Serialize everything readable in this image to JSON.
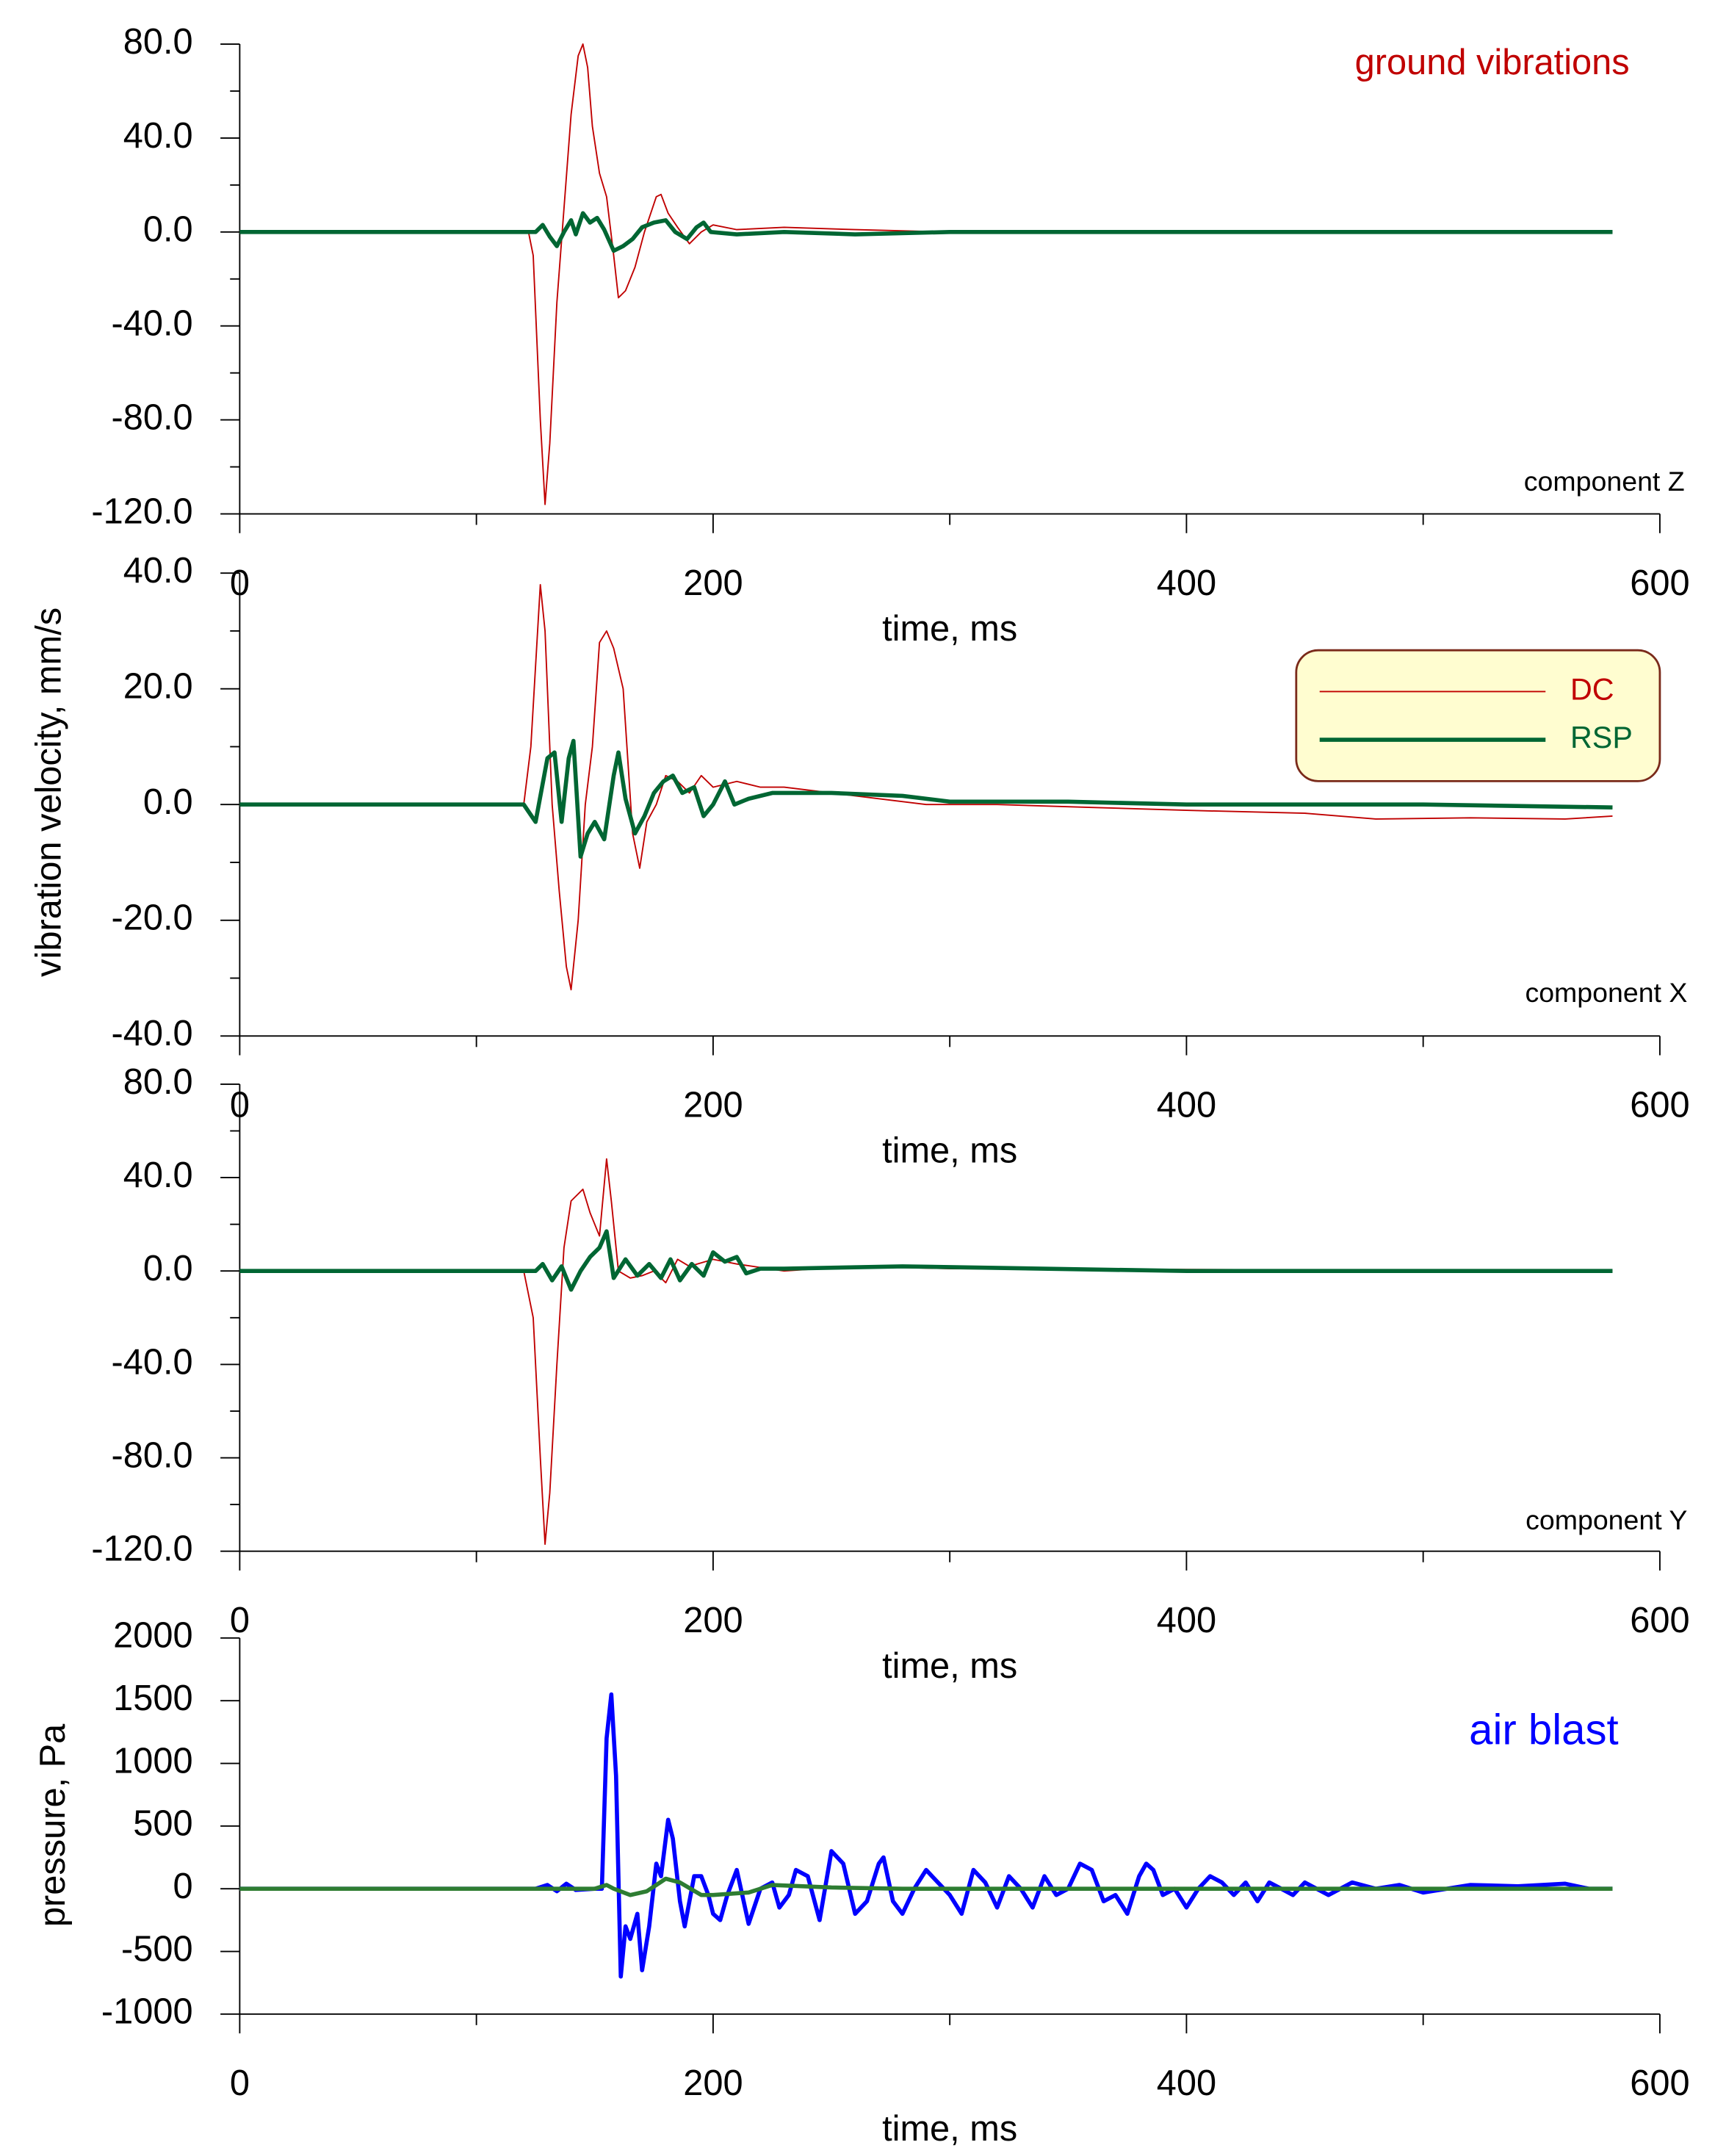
{
  "chart_data": [
    {
      "type": "line",
      "annotation": "ground vibrations",
      "annotation_color": "#c00000",
      "component": "component Z",
      "xlabel": "time, ms",
      "xlim": [
        0,
        600
      ],
      "xticks": [
        0,
        200,
        400,
        600
      ],
      "xminorticks": [
        100,
        300,
        500
      ],
      "ylim": [
        -120,
        80
      ],
      "yticks": [
        {
          "value": -120,
          "label": "-120.0"
        },
        {
          "value": -80,
          "label": "-80.0"
        },
        {
          "value": -40,
          "label": "-40.0"
        },
        {
          "value": 0,
          "label": "0.0"
        },
        {
          "value": 40,
          "label": "40.0"
        },
        {
          "value": 80,
          "label": "80.0"
        }
      ],
      "yminorticks": [
        -100,
        -60,
        -20,
        20,
        60
      ],
      "series": [
        {
          "color": "#c00000",
          "width": 1,
          "x": [
            0,
            122,
            124,
            127,
            129,
            131,
            134,
            137,
            140,
            143,
            145,
            147,
            149,
            152,
            155,
            158,
            160,
            163,
            167,
            171,
            176,
            178,
            181,
            185,
            190,
            195,
            200,
            210,
            230,
            260,
            300,
            580
          ],
          "values": [
            0,
            0,
            -10,
            -80,
            -116,
            -90,
            -30,
            10,
            50,
            75,
            80,
            70,
            45,
            25,
            15,
            -10,
            -28,
            -25,
            -15,
            0,
            15,
            16,
            8,
            2,
            -5,
            0,
            3,
            1,
            2,
            1,
            0,
            0
          ]
        },
        {
          "color": "#006633",
          "width": 3,
          "x": [
            0,
            125,
            128,
            131,
            134,
            137,
            140,
            142,
            145,
            148,
            151,
            154,
            158,
            162,
            166,
            170,
            175,
            180,
            184,
            189,
            193,
            196,
            199,
            210,
            230,
            260,
            300,
            580
          ],
          "values": [
            0,
            0,
            3,
            -2,
            -6,
            0,
            5,
            -1,
            8,
            4,
            6,
            1,
            -8,
            -6,
            -3,
            2,
            4,
            5,
            0,
            -3,
            2,
            4,
            0,
            -1,
            0,
            -1,
            0,
            0
          ]
        }
      ]
    },
    {
      "type": "line",
      "component": "component X",
      "xlabel": "time, ms",
      "ylabel": "vibration velocity, mm/s",
      "legend": "upper right",
      "xlim": [
        0,
        600
      ],
      "xticks": [
        0,
        200,
        400,
        600
      ],
      "xminorticks": [
        100,
        300,
        500
      ],
      "ylim": [
        -40,
        40
      ],
      "yticks": [
        {
          "value": -40,
          "label": "-40.0"
        },
        {
          "value": -20,
          "label": "-20.0"
        },
        {
          "value": 0,
          "label": "0.0"
        },
        {
          "value": 20,
          "label": "20.0"
        },
        {
          "value": 40,
          "label": "40.0"
        }
      ],
      "yminorticks": [
        -30,
        -10,
        10,
        30
      ],
      "series": [
        {
          "name": "DC",
          "color": "#c00000",
          "width": 1,
          "x": [
            0,
            120,
            123,
            127,
            129,
            132,
            135,
            138,
            140,
            143,
            146,
            149,
            152,
            155,
            158,
            162,
            166,
            169,
            172,
            176,
            180,
            185,
            190,
            195,
            200,
            210,
            220,
            230,
            250,
            270,
            290,
            320,
            360,
            400,
            450,
            480,
            520,
            560,
            580
          ],
          "values": [
            0,
            0,
            10,
            38,
            30,
            0,
            -15,
            -28,
            -32,
            -20,
            0,
            10,
            28,
            30,
            27,
            20,
            -5,
            -11,
            -3,
            0,
            5,
            4,
            2,
            5,
            3,
            4,
            3,
            3,
            2,
            1,
            0,
            0,
            -0.5,
            -1,
            -1.5,
            -2.5,
            -2.3,
            -2.5,
            -2
          ]
        },
        {
          "name": "RSP",
          "color": "#006633",
          "width": 3,
          "x": [
            0,
            120,
            125,
            130,
            133,
            136,
            139,
            141,
            144,
            147,
            150,
            154,
            158,
            160,
            163,
            167,
            171,
            175,
            179,
            183,
            187,
            192,
            196,
            200,
            205,
            209,
            215,
            225,
            250,
            280,
            300,
            350,
            400,
            500,
            580
          ],
          "values": [
            0,
            0,
            -3,
            8,
            9,
            -3,
            8,
            11,
            -9,
            -5,
            -3,
            -6,
            5,
            9,
            1,
            -5,
            -2,
            2,
            4,
            5,
            2,
            3,
            -2,
            0,
            4,
            0,
            1,
            2,
            2,
            1.5,
            0.5,
            0.5,
            0,
            0,
            -0.5
          ]
        }
      ]
    },
    {
      "type": "line",
      "component": "component Y",
      "xlabel": "time, ms",
      "xlim": [
        0,
        600
      ],
      "xticks": [
        0,
        200,
        400,
        600
      ],
      "xminorticks": [
        100,
        300,
        500
      ],
      "ylim": [
        -120,
        80
      ],
      "yticks": [
        {
          "value": -120,
          "label": "-120.0"
        },
        {
          "value": -80,
          "label": "-80.0"
        },
        {
          "value": -40,
          "label": "-40.0"
        },
        {
          "value": 0,
          "label": "0.0"
        },
        {
          "value": 40,
          "label": "40.0"
        },
        {
          "value": 80,
          "label": "80.0"
        }
      ],
      "yminorticks": [
        -100,
        -60,
        -20,
        20,
        60
      ],
      "series": [
        {
          "color": "#c00000",
          "width": 1,
          "x": [
            0,
            120,
            124,
            127,
            129,
            131,
            134,
            137,
            140,
            145,
            148,
            152,
            155,
            157,
            160,
            165,
            170,
            175,
            180,
            185,
            190,
            200,
            210,
            230,
            260,
            300,
            580
          ],
          "values": [
            0,
            0,
            -20,
            -80,
            -117,
            -95,
            -40,
            10,
            30,
            35,
            25,
            15,
            48,
            30,
            0,
            -3,
            -2,
            0,
            -5,
            5,
            2,
            5,
            3,
            0,
            2,
            1,
            0
          ]
        },
        {
          "color": "#006633",
          "width": 3,
          "x": [
            0,
            125,
            128,
            132,
            136,
            140,
            144,
            148,
            152,
            155,
            158,
            163,
            168,
            173,
            178,
            182,
            186,
            191,
            196,
            200,
            205,
            210,
            214,
            220,
            230,
            280,
            400,
            580
          ],
          "values": [
            0,
            0,
            3,
            -4,
            2,
            -8,
            0,
            6,
            10,
            17,
            -3,
            5,
            -2,
            3,
            -3,
            5,
            -4,
            3,
            -2,
            8,
            4,
            6,
            -1,
            1,
            1,
            2,
            0,
            0
          ]
        }
      ]
    },
    {
      "type": "line",
      "annotation": "air blast",
      "annotation_color": "#0000ff",
      "xlabel": "time, ms",
      "ylabel": "pressure, Pa",
      "xlim": [
        0,
        600
      ],
      "xticks": [
        0,
        200,
        400,
        600
      ],
      "xminorticks": [
        100,
        300,
        500
      ],
      "ylim": [
        -1000,
        2000
      ],
      "yticks": [
        -1000,
        -500,
        0,
        500,
        1000,
        1500,
        2000
      ],
      "series": [
        {
          "color": "#0000ff",
          "width": 3,
          "x": [
            0,
            125,
            130,
            134,
            138,
            142,
            150,
            153,
            155,
            157,
            159,
            161,
            163,
            165,
            168,
            170,
            173,
            176,
            178,
            181,
            183,
            186,
            188,
            192,
            195,
            198,
            200,
            203,
            206,
            210,
            215,
            220,
            225,
            228,
            232,
            235,
            240,
            245,
            250,
            255,
            260,
            265,
            270,
            272,
            276,
            280,
            285,
            290,
            295,
            300,
            305,
            310,
            315,
            320,
            325,
            330,
            335,
            340,
            345,
            350,
            355,
            360,
            365,
            370,
            375,
            380,
            383,
            386,
            390,
            395,
            400,
            405,
            410,
            415,
            420,
            425,
            430,
            435,
            440,
            445,
            450,
            460,
            470,
            480,
            490,
            500,
            520,
            540,
            560,
            570,
            580
          ],
          "values": [
            0,
            0,
            30,
            -20,
            40,
            -10,
            0,
            0,
            1200,
            1550,
            900,
            -700,
            -300,
            -400,
            -200,
            -650,
            -300,
            200,
            100,
            550,
            400,
            -100,
            -300,
            100,
            100,
            -50,
            -200,
            -250,
            -50,
            150,
            -280,
            0,
            50,
            -150,
            -50,
            150,
            100,
            -250,
            300,
            200,
            -200,
            -100,
            200,
            250,
            -100,
            -200,
            0,
            150,
            50,
            -50,
            -200,
            150,
            50,
            -150,
            100,
            0,
            -150,
            100,
            -50,
            0,
            200,
            150,
            -100,
            -50,
            -200,
            100,
            200,
            150,
            -50,
            0,
            -150,
            0,
            100,
            50,
            -50,
            50,
            -100,
            50,
            0,
            -50,
            50,
            -50,
            50,
            0,
            30,
            -30,
            30,
            20,
            40,
            0,
            0
          ]
        },
        {
          "color": "#2e7d32",
          "width": 3,
          "x": [
            0,
            150,
            155,
            158,
            165,
            172,
            180,
            186,
            195,
            200,
            215,
            225,
            250,
            280,
            580
          ],
          "values": [
            0,
            0,
            30,
            0,
            -50,
            -20,
            80,
            50,
            -50,
            -50,
            -30,
            30,
            10,
            0,
            0
          ]
        }
      ]
    }
  ]
}
